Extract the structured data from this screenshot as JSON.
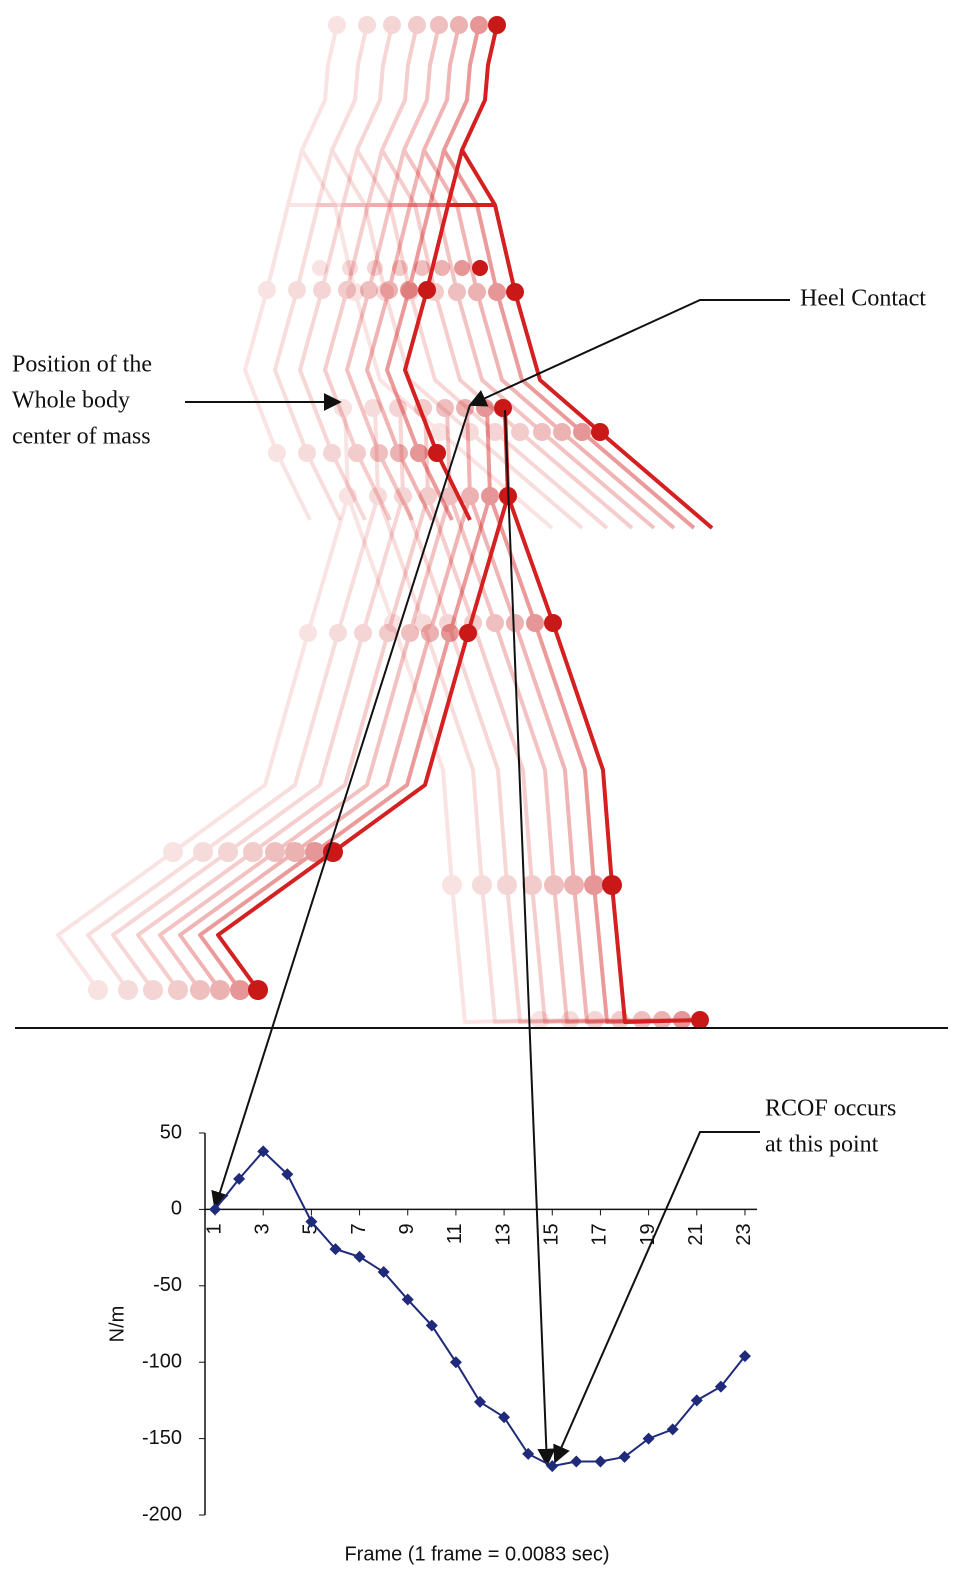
{
  "chart_data": {
    "type": "line",
    "x_label": "Frame (1 frame = 0.0083 sec)",
    "y_label": "N/m",
    "x": [
      1,
      2,
      3,
      4,
      5,
      6,
      7,
      8,
      9,
      10,
      11,
      12,
      13,
      14,
      15,
      16,
      17,
      18,
      19,
      20,
      21,
      22,
      23
    ],
    "values": [
      0,
      20,
      38,
      23,
      -8,
      -26,
      -31,
      -41,
      -59,
      -76,
      -100,
      -126,
      -136,
      -160,
      -168,
      -165,
      -165,
      -162,
      -150,
      -144,
      -125,
      -116,
      -96
    ],
    "color": "#1f2a7a",
    "xlim": [
      0.5,
      23.5
    ],
    "xticks": [
      1,
      3,
      5,
      7,
      9,
      11,
      13,
      15,
      17,
      19,
      21,
      23
    ],
    "ylim": [
      -200,
      50
    ],
    "yticks": [
      50,
      0,
      -50,
      -100,
      -150,
      -200
    ],
    "annotations": {
      "heel_contact": "Heel Contact",
      "center_of_mass": [
        "Position of the",
        "Whole body",
        "center of mass"
      ],
      "rcof": [
        "RCOF occurs",
        "at this point"
      ]
    }
  }
}
